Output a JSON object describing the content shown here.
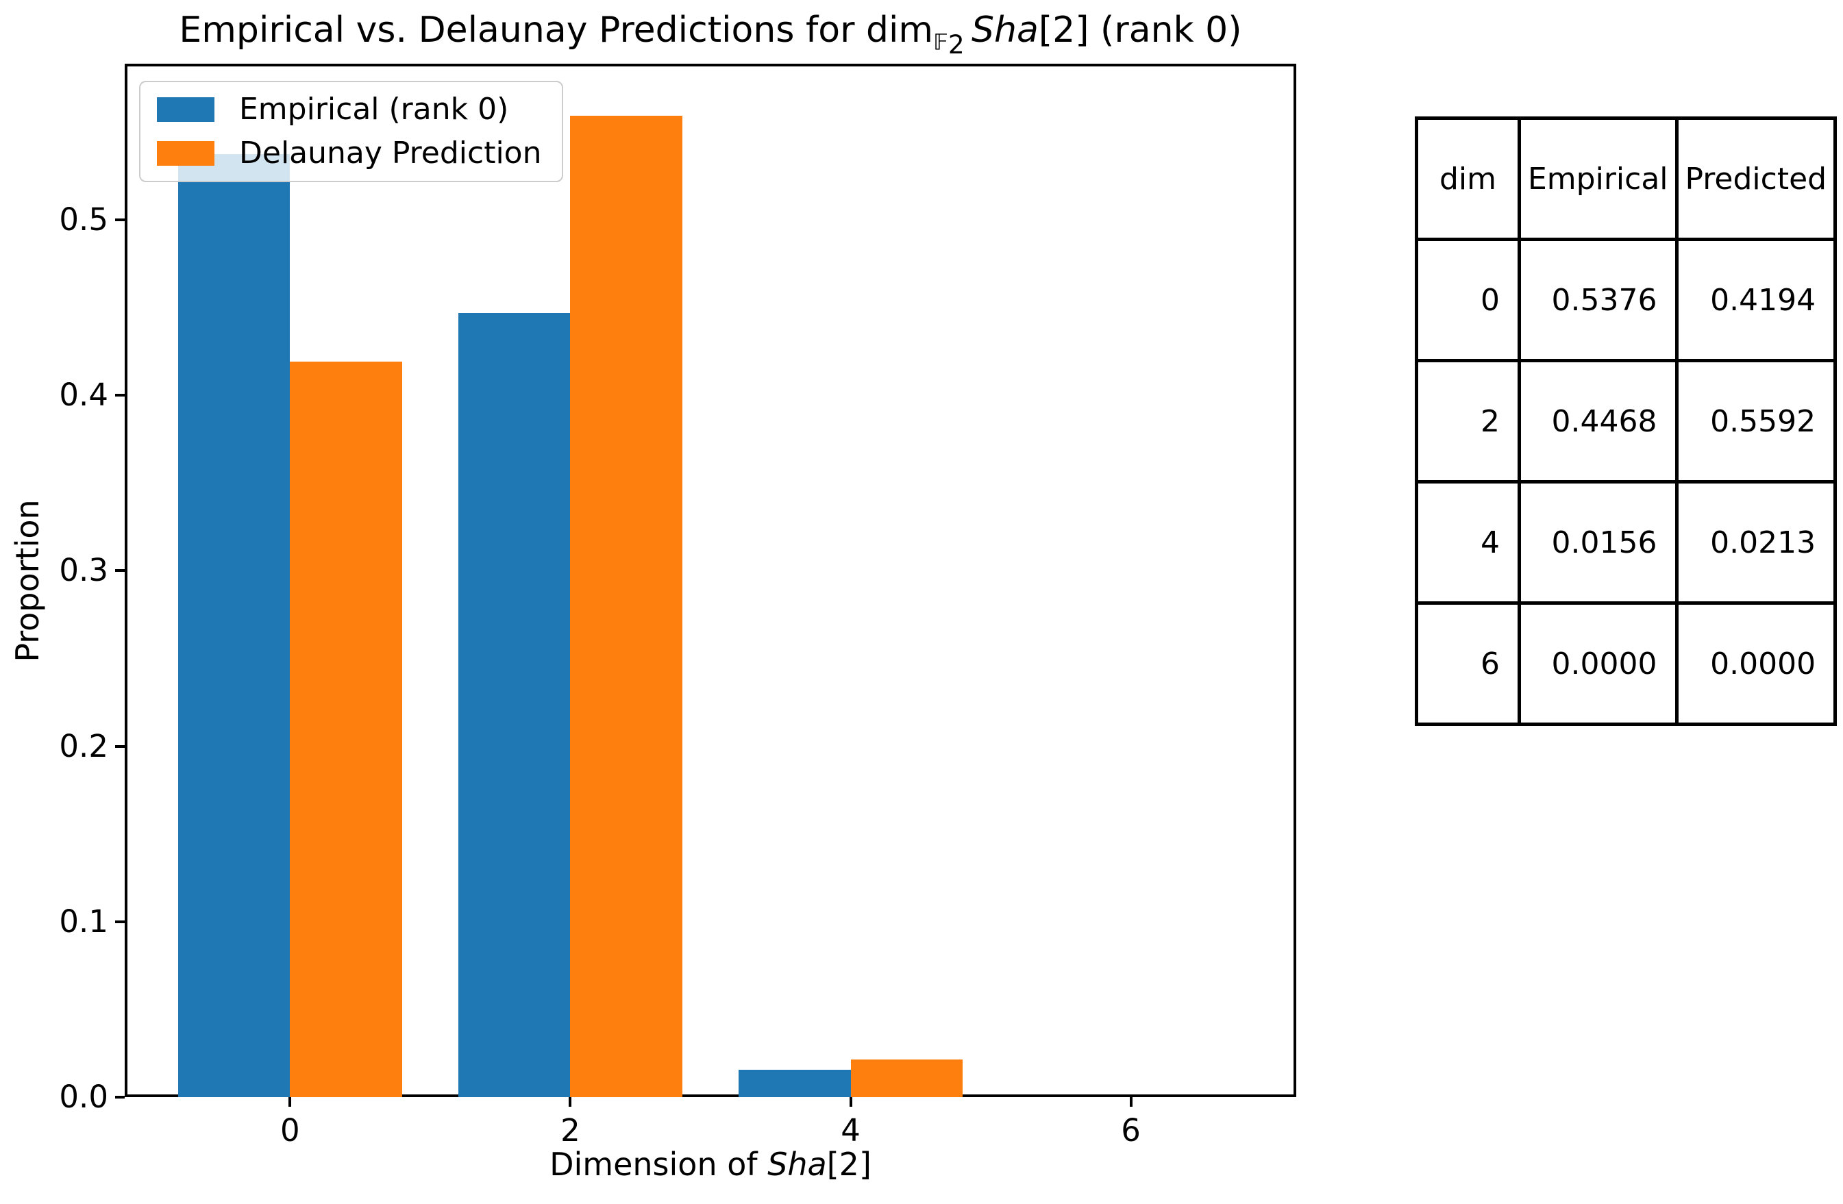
{
  "accent_colors": {
    "empirical_blue": "#1f77b4",
    "prediction_orange": "#ff7f0e"
  },
  "title_parts": {
    "prefix": "Empirical vs. Delaunay Predictions for dim",
    "subscript_f": "𝔽",
    "subscript_2": "2",
    "sha_italic": "Sha",
    "suffix": "[2] (rank 0)"
  },
  "xlabel_parts": {
    "prefix": "Dimension of ",
    "sha_italic": "Sha",
    "suffix": "[2]"
  },
  "chart_data": {
    "type": "bar",
    "title": "Empirical vs. Delaunay Predictions for dim_F2 Sha[2] (rank 0)",
    "xlabel": "Dimension of Sha[2]",
    "ylabel": "Proportion",
    "categories": [
      0,
      2,
      4,
      6
    ],
    "series": [
      {
        "name": "Empirical (rank 0)",
        "color": "#1f77b4",
        "values": [
          0.5376,
          0.4468,
          0.0156,
          0.0
        ]
      },
      {
        "name": "Delaunay Prediction",
        "color": "#ff7f0e",
        "values": [
          0.4194,
          0.5592,
          0.0213,
          0.0
        ]
      }
    ],
    "bar_width_units": 0.8,
    "xlim": [
      -1.18,
      7.18
    ],
    "ylim": [
      0,
      0.589
    ],
    "yticks": [
      "0.0",
      "0.1",
      "0.2",
      "0.3",
      "0.4",
      "0.5"
    ],
    "xticks": [
      "0",
      "2",
      "4",
      "6"
    ],
    "legend_position": "upper left",
    "grid": false
  },
  "legend": {
    "items": [
      {
        "label": "Empirical (rank 0)"
      },
      {
        "label": "Delaunay Prediction"
      }
    ]
  },
  "table": {
    "headers": [
      "dim",
      "Empirical",
      "Predicted"
    ],
    "rows": [
      [
        "0",
        "0.5376",
        "0.4194"
      ],
      [
        "2",
        "0.4468",
        "0.5592"
      ],
      [
        "4",
        "0.0156",
        "0.0213"
      ],
      [
        "6",
        "0.0000",
        "0.0000"
      ]
    ]
  },
  "ylabel": "Proportion"
}
